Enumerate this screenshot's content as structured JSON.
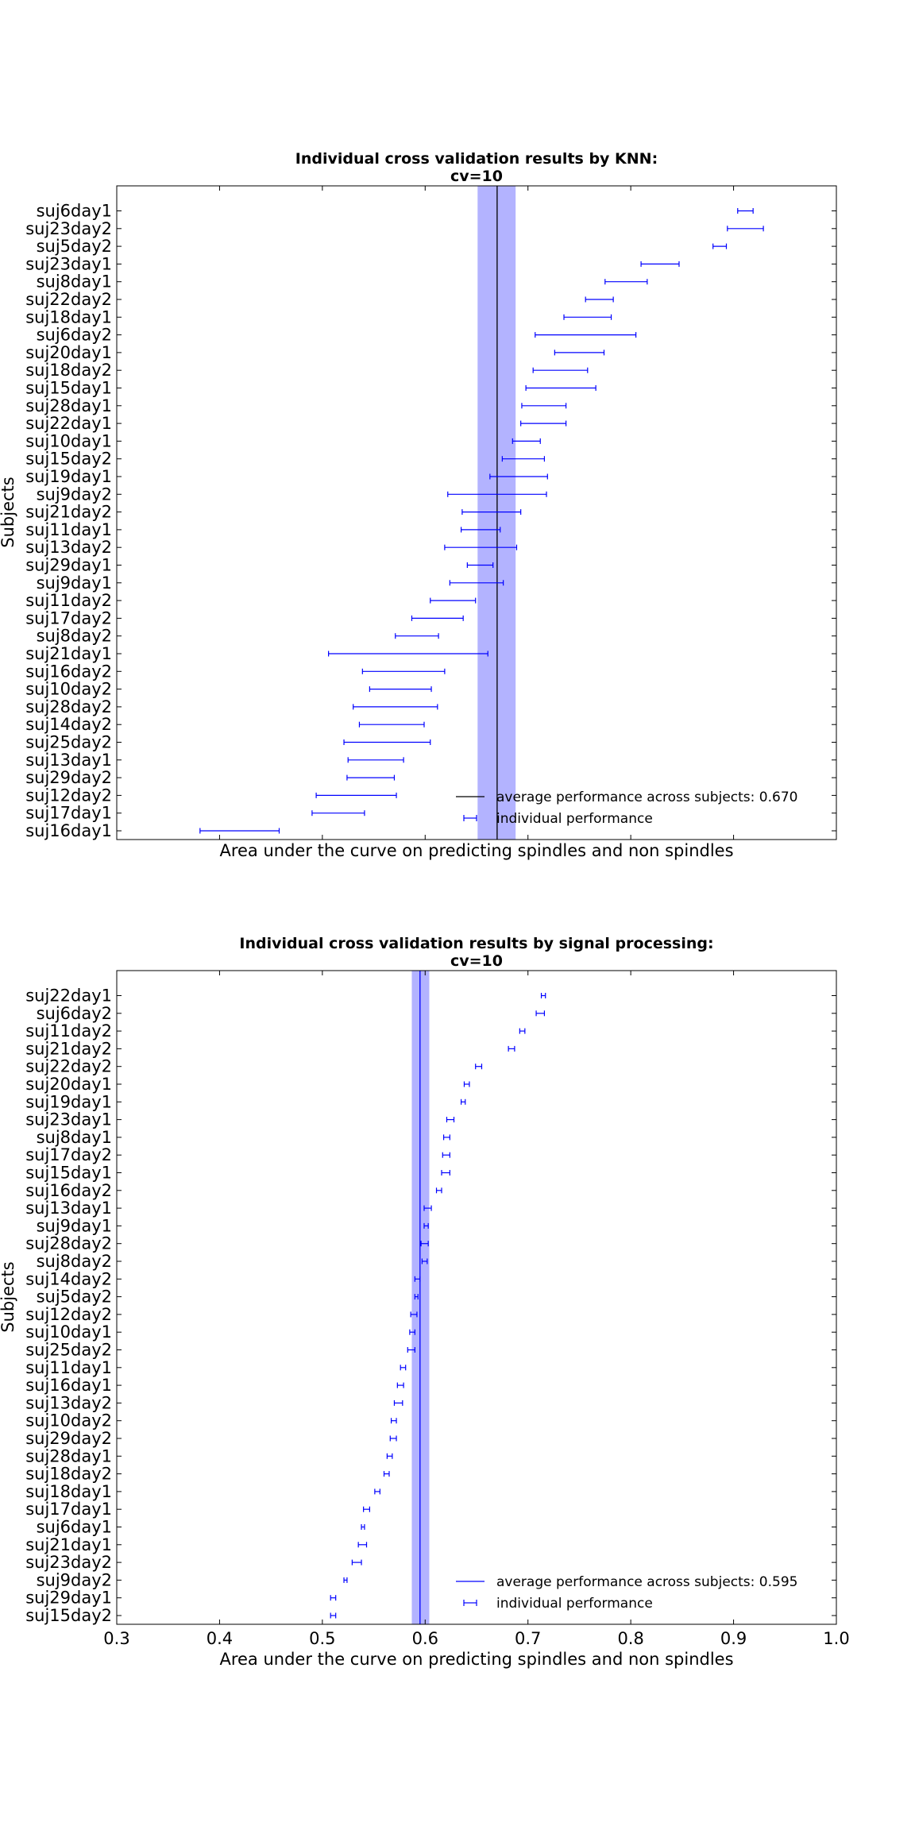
{
  "chart_data": [
    {
      "type": "errorbar",
      "title": "Individual cross validation results by KNN:",
      "subtitle": "cv=10",
      "xlabel": "Area under the curve on predicting spindles and non spindles",
      "ylabel": "Subjects",
      "xlim": [
        0.3,
        1.0
      ],
      "x_tick_labels_shown": false,
      "average": {
        "value": 0.67,
        "band": [
          0.651,
          0.688
        ],
        "color": "#000000",
        "band_color": "#b3b3ff"
      },
      "legend": {
        "average_label": "average performance across subjects: 0.670",
        "individual_label": "individual performance",
        "position": "lower right"
      },
      "series_color": "#0000ff",
      "subjects": [
        "suj6day1",
        "suj23day2",
        "suj5day2",
        "suj23day1",
        "suj8day1",
        "suj22day2",
        "suj18day1",
        "suj6day2",
        "suj20day1",
        "suj18day2",
        "suj15day1",
        "suj28day1",
        "suj22day1",
        "suj10day1",
        "suj15day2",
        "suj19day1",
        "suj9day2",
        "suj21day2",
        "suj11day1",
        "suj13day2",
        "suj29day1",
        "suj9day1",
        "suj11day2",
        "suj17day2",
        "suj8day2",
        "suj21day1",
        "suj16day2",
        "suj10day2",
        "suj28day2",
        "suj14day2",
        "suj25day2",
        "suj13day1",
        "suj29day2",
        "suj12day2",
        "suj17day1",
        "suj16day1"
      ],
      "ranges": [
        [
          0.904,
          0.919
        ],
        [
          0.894,
          0.929
        ],
        [
          0.88,
          0.893
        ],
        [
          0.81,
          0.847
        ],
        [
          0.775,
          0.816
        ],
        [
          0.756,
          0.783
        ],
        [
          0.735,
          0.781
        ],
        [
          0.707,
          0.805
        ],
        [
          0.726,
          0.774
        ],
        [
          0.705,
          0.758
        ],
        [
          0.698,
          0.766
        ],
        [
          0.694,
          0.737
        ],
        [
          0.693,
          0.737
        ],
        [
          0.685,
          0.712
        ],
        [
          0.675,
          0.716
        ],
        [
          0.663,
          0.719
        ],
        [
          0.622,
          0.718
        ],
        [
          0.636,
          0.693
        ],
        [
          0.635,
          0.673
        ],
        [
          0.619,
          0.689
        ],
        [
          0.641,
          0.666
        ],
        [
          0.624,
          0.676
        ],
        [
          0.605,
          0.649
        ],
        [
          0.587,
          0.637
        ],
        [
          0.571,
          0.613
        ],
        [
          0.506,
          0.661
        ],
        [
          0.539,
          0.619
        ],
        [
          0.546,
          0.606
        ],
        [
          0.53,
          0.612
        ],
        [
          0.536,
          0.599
        ],
        [
          0.521,
          0.605
        ],
        [
          0.525,
          0.579
        ],
        [
          0.524,
          0.57
        ],
        [
          0.494,
          0.572
        ],
        [
          0.49,
          0.541
        ],
        [
          0.381,
          0.458
        ]
      ]
    },
    {
      "type": "errorbar",
      "title": "Individual cross validation results by signal processing:",
      "subtitle": "cv=10",
      "xlabel": "Area under the curve on predicting spindles and non spindles",
      "ylabel": "Subjects",
      "xlim": [
        0.3,
        1.0
      ],
      "x_tick_labels": [
        "0.3",
        "0.4",
        "0.5",
        "0.6",
        "0.7",
        "0.8",
        "0.9",
        "1.0"
      ],
      "average": {
        "value": 0.595,
        "band": [
          0.587,
          0.604
        ],
        "color": "#0000ff",
        "band_color": "#b3b3ff"
      },
      "legend": {
        "average_label": "average performance across subjects: 0.595",
        "individual_label": "individual performance",
        "position": "lower right"
      },
      "series_color": "#0000ff",
      "subjects": [
        "suj22day1",
        "suj6day2",
        "suj11day2",
        "suj21day2",
        "suj22day2",
        "suj20day1",
        "suj19day1",
        "suj23day1",
        "suj8day1",
        "suj17day2",
        "suj15day1",
        "suj16day2",
        "suj13day1",
        "suj9day1",
        "suj28day2",
        "suj8day2",
        "suj14day2",
        "suj5day2",
        "suj12day2",
        "suj10day1",
        "suj25day2",
        "suj11day1",
        "suj16day1",
        "suj13day2",
        "suj10day2",
        "suj29day2",
        "suj28day1",
        "suj18day2",
        "suj18day1",
        "suj17day1",
        "suj6day1",
        "suj21day1",
        "suj23day2",
        "suj9day2",
        "suj29day1",
        "suj15day2"
      ],
      "ranges": [
        [
          0.713,
          0.717
        ],
        [
          0.708,
          0.716
        ],
        [
          0.692,
          0.697
        ],
        [
          0.681,
          0.687
        ],
        [
          0.649,
          0.655
        ],
        [
          0.638,
          0.643
        ],
        [
          0.635,
          0.639
        ],
        [
          0.621,
          0.628
        ],
        [
          0.618,
          0.624
        ],
        [
          0.617,
          0.624
        ],
        [
          0.616,
          0.624
        ],
        [
          0.611,
          0.616
        ],
        [
          0.599,
          0.606
        ],
        [
          0.599,
          0.603
        ],
        [
          0.596,
          0.603
        ],
        [
          0.597,
          0.602
        ],
        [
          0.59,
          0.595
        ],
        [
          0.59,
          0.593
        ],
        [
          0.586,
          0.592
        ],
        [
          0.585,
          0.59
        ],
        [
          0.583,
          0.59
        ],
        [
          0.576,
          0.581
        ],
        [
          0.573,
          0.579
        ],
        [
          0.57,
          0.578
        ],
        [
          0.567,
          0.572
        ],
        [
          0.566,
          0.572
        ],
        [
          0.563,
          0.568
        ],
        [
          0.56,
          0.565
        ],
        [
          0.551,
          0.556
        ],
        [
          0.54,
          0.546
        ],
        [
          0.538,
          0.541
        ],
        [
          0.535,
          0.543
        ],
        [
          0.529,
          0.538
        ],
        [
          0.521,
          0.524
        ],
        [
          0.508,
          0.513
        ],
        [
          0.508,
          0.513
        ]
      ]
    }
  ]
}
